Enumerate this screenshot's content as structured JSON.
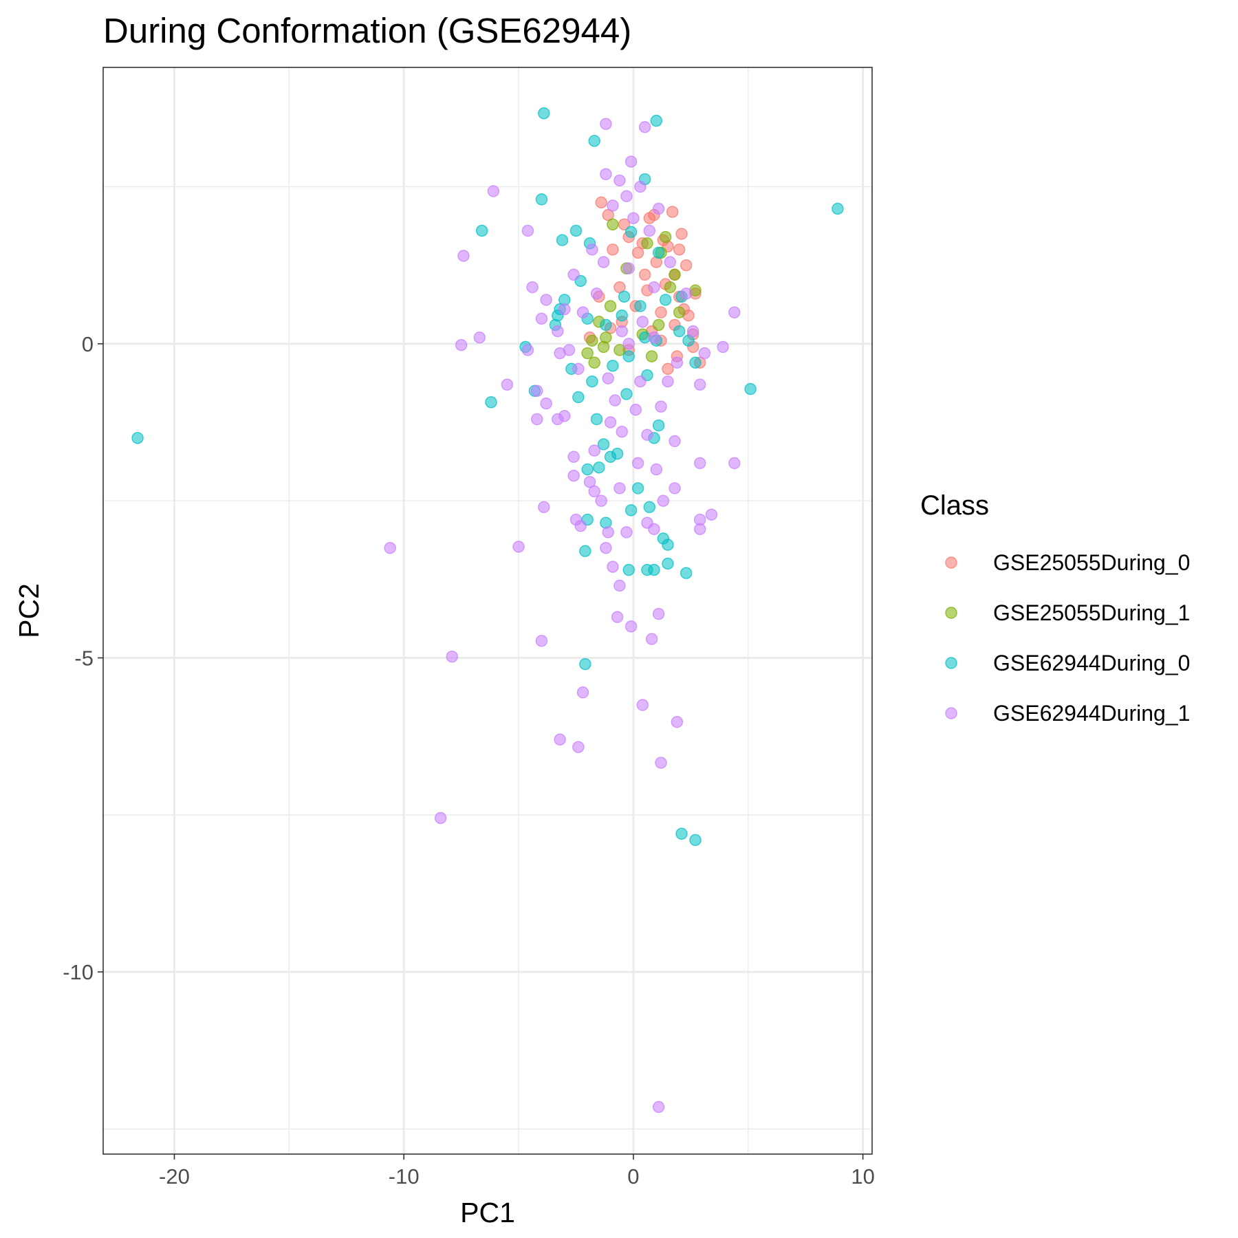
{
  "chart_data": {
    "type": "scatter",
    "title": "During Conformation (GSE62944)",
    "xlabel": "PC1",
    "ylabel": "PC2",
    "xlim": [
      -23.1,
      10.4
    ],
    "ylim": [
      -12.9,
      4.4
    ],
    "x_ticks": [
      -20,
      -10,
      0,
      10
    ],
    "x_tick_labels": [
      "-20",
      "-10",
      "0",
      "10"
    ],
    "y_ticks": [
      -10,
      -5,
      0
    ],
    "y_tick_labels": [
      "-10",
      "-5",
      "0"
    ],
    "grid": true,
    "legend": {
      "title": "Class",
      "position": "right",
      "items": [
        "GSE25055During_0",
        "GSE25055During_1",
        "GSE62944During_0",
        "GSE62944During_1"
      ]
    },
    "marker_alpha": 0.55,
    "series": [
      {
        "name": "GSE25055During_0",
        "color": "#F8766D",
        "points": [
          [
            -1.4,
            2.25
          ],
          [
            -1.1,
            2.05
          ],
          [
            -0.4,
            1.9
          ],
          [
            0.7,
            2.0
          ],
          [
            0.9,
            2.05
          ],
          [
            1.7,
            2.1
          ],
          [
            0.4,
            1.6
          ],
          [
            1.3,
            1.65
          ],
          [
            2.1,
            1.75
          ],
          [
            2.0,
            1.5
          ],
          [
            1.5,
            1.55
          ],
          [
            -0.2,
            1.7
          ],
          [
            0.2,
            1.45
          ],
          [
            1.0,
            1.3
          ],
          [
            2.3,
            1.25
          ],
          [
            1.8,
            1.1
          ],
          [
            2.0,
            0.75
          ],
          [
            2.7,
            0.8
          ],
          [
            1.4,
            0.95
          ],
          [
            0.6,
            0.85
          ],
          [
            -0.6,
            0.9
          ],
          [
            -1.5,
            0.75
          ],
          [
            1.2,
            0.5
          ],
          [
            2.2,
            0.55
          ],
          [
            2.6,
            0.15
          ],
          [
            1.8,
            0.3
          ],
          [
            0.8,
            0.2
          ],
          [
            -0.5,
            0.35
          ],
          [
            2.6,
            -0.05
          ],
          [
            2.9,
            -0.3
          ],
          [
            1.9,
            -0.2
          ],
          [
            1.2,
            0.05
          ],
          [
            -1.0,
            0.25
          ],
          [
            0.1,
            0.6
          ],
          [
            -1.9,
            0.1
          ],
          [
            1.5,
            -0.4
          ],
          [
            0.5,
            1.1
          ],
          [
            -0.9,
            1.5
          ],
          [
            2.4,
            0.45
          ],
          [
            -0.2,
            -0.1
          ]
        ]
      },
      {
        "name": "GSE25055During_1",
        "color": "#7CAE00",
        "points": [
          [
            2.7,
            0.85
          ],
          [
            1.8,
            1.1
          ],
          [
            1.6,
            0.9
          ],
          [
            1.2,
            1.45
          ],
          [
            0.6,
            1.6
          ],
          [
            -0.3,
            1.2
          ],
          [
            -1.0,
            0.6
          ],
          [
            -1.5,
            0.35
          ],
          [
            -2.0,
            -0.15
          ],
          [
            -1.8,
            0.05
          ],
          [
            -1.2,
            0.1
          ],
          [
            -0.6,
            -0.1
          ],
          [
            0.4,
            0.15
          ],
          [
            1.1,
            0.3
          ],
          [
            2.0,
            0.5
          ],
          [
            -1.7,
            -0.3
          ],
          [
            -1.3,
            -0.05
          ],
          [
            0.8,
            -0.2
          ],
          [
            1.4,
            1.7
          ],
          [
            -0.9,
            1.9
          ]
        ]
      },
      {
        "name": "GSE62944During_0",
        "color": "#00BFC4",
        "points": [
          [
            -3.9,
            3.67
          ],
          [
            1.0,
            3.55
          ],
          [
            -1.7,
            3.23
          ],
          [
            0.5,
            2.62
          ],
          [
            -4.0,
            2.3
          ],
          [
            8.9,
            2.15
          ],
          [
            -6.6,
            1.8
          ],
          [
            -3.1,
            1.65
          ],
          [
            -2.5,
            1.8
          ],
          [
            -1.9,
            1.6
          ],
          [
            -0.1,
            1.78
          ],
          [
            1.1,
            1.45
          ],
          [
            -2.3,
            1.0
          ],
          [
            -3.0,
            0.7
          ],
          [
            -3.2,
            0.55
          ],
          [
            -3.4,
            0.3
          ],
          [
            -3.3,
            0.45
          ],
          [
            -2.0,
            0.4
          ],
          [
            -1.2,
            0.3
          ],
          [
            -0.4,
            0.75
          ],
          [
            0.3,
            0.6
          ],
          [
            1.4,
            0.7
          ],
          [
            2.1,
            0.75
          ],
          [
            2.0,
            0.2
          ],
          [
            2.4,
            0.05
          ],
          [
            2.7,
            -0.3
          ],
          [
            1.0,
            0.05
          ],
          [
            -0.2,
            -0.2
          ],
          [
            -0.9,
            -0.35
          ],
          [
            -2.7,
            -0.4
          ],
          [
            -4.7,
            -0.05
          ],
          [
            -6.2,
            -0.93
          ],
          [
            -4.3,
            -0.75
          ],
          [
            -2.4,
            -0.85
          ],
          [
            -1.8,
            -0.6
          ],
          [
            -0.3,
            -0.8
          ],
          [
            0.6,
            -0.5
          ],
          [
            1.1,
            -1.3
          ],
          [
            0.9,
            -1.5
          ],
          [
            -1.6,
            -1.2
          ],
          [
            -1.3,
            -1.6
          ],
          [
            -1.0,
            -1.8
          ],
          [
            -1.5,
            -1.97
          ],
          [
            -2.0,
            -2.0
          ],
          [
            -0.7,
            -1.75
          ],
          [
            0.2,
            -2.3
          ],
          [
            -0.1,
            -2.65
          ],
          [
            0.7,
            -2.6
          ],
          [
            -2.0,
            -2.8
          ],
          [
            -1.2,
            -2.85
          ],
          [
            -2.1,
            -3.3
          ],
          [
            1.3,
            -3.1
          ],
          [
            1.5,
            -3.2
          ],
          [
            -0.2,
            -3.6
          ],
          [
            0.6,
            -3.6
          ],
          [
            0.9,
            -3.6
          ],
          [
            1.5,
            -3.5
          ],
          [
            2.3,
            -3.65
          ],
          [
            -2.1,
            -5.1
          ],
          [
            2.1,
            -7.8
          ],
          [
            2.7,
            -7.9
          ],
          [
            5.1,
            -0.72
          ],
          [
            -21.6,
            -1.5
          ],
          [
            0.5,
            0.1
          ],
          [
            -0.5,
            0.45
          ]
        ]
      },
      {
        "name": "GSE62944During_1",
        "color": "#C77CFF",
        "points": [
          [
            -1.2,
            3.5
          ],
          [
            0.5,
            3.45
          ],
          [
            -0.1,
            2.9
          ],
          [
            -1.2,
            2.7
          ],
          [
            -0.6,
            2.6
          ],
          [
            0.3,
            2.5
          ],
          [
            -6.1,
            2.43
          ],
          [
            -0.3,
            2.35
          ],
          [
            1.1,
            2.15
          ],
          [
            -4.6,
            1.8
          ],
          [
            -7.4,
            1.4
          ],
          [
            -4.4,
            0.9
          ],
          [
            -3.8,
            0.7
          ],
          [
            -4.0,
            0.4
          ],
          [
            -3.3,
            0.2
          ],
          [
            -3.0,
            0.55
          ],
          [
            4.4,
            0.5
          ],
          [
            3.9,
            -0.05
          ],
          [
            -7.5,
            -0.02
          ],
          [
            -6.7,
            0.1
          ],
          [
            -4.6,
            -0.1
          ],
          [
            -3.2,
            -0.15
          ],
          [
            -5.5,
            -0.65
          ],
          [
            -4.2,
            -0.75
          ],
          [
            -3.8,
            -0.95
          ],
          [
            -4.2,
            -1.2
          ],
          [
            -3.3,
            -1.2
          ],
          [
            -3.0,
            -1.15
          ],
          [
            2.9,
            -0.65
          ],
          [
            3.1,
            -0.15
          ],
          [
            -2.6,
            -1.8
          ],
          [
            -1.7,
            -1.7
          ],
          [
            -2.6,
            -2.1
          ],
          [
            -1.9,
            -2.2
          ],
          [
            -1.7,
            -2.35
          ],
          [
            -1.4,
            -2.5
          ],
          [
            -3.9,
            -2.6
          ],
          [
            -2.5,
            -2.8
          ],
          [
            -2.3,
            -2.9
          ],
          [
            -1.1,
            -3.0
          ],
          [
            -0.3,
            -3.0
          ],
          [
            0.6,
            -2.85
          ],
          [
            0.9,
            -2.95
          ],
          [
            1.3,
            -2.5
          ],
          [
            1.8,
            -2.3
          ],
          [
            2.9,
            -1.9
          ],
          [
            4.4,
            -1.9
          ],
          [
            2.9,
            -2.8
          ],
          [
            2.9,
            -2.95
          ],
          [
            3.4,
            -2.72
          ],
          [
            -10.6,
            -3.25
          ],
          [
            -5.0,
            -3.23
          ],
          [
            -1.2,
            -3.25
          ],
          [
            -0.9,
            -3.55
          ],
          [
            -0.6,
            -3.85
          ],
          [
            -0.7,
            -4.35
          ],
          [
            -0.1,
            -4.5
          ],
          [
            1.1,
            -4.3
          ],
          [
            0.8,
            -4.7
          ],
          [
            -4.0,
            -4.73
          ],
          [
            -7.9,
            -4.98
          ],
          [
            -2.2,
            -5.55
          ],
          [
            0.4,
            -5.75
          ],
          [
            1.9,
            -6.02
          ],
          [
            -3.2,
            -6.3
          ],
          [
            -2.4,
            -6.42
          ],
          [
            1.2,
            -6.67
          ],
          [
            -8.4,
            -7.55
          ],
          [
            1.1,
            -12.15
          ],
          [
            -0.5,
            0.2
          ],
          [
            0.3,
            -0.6
          ],
          [
            -0.8,
            -0.9
          ],
          [
            1.5,
            -0.6
          ],
          [
            -0.2,
            1.2
          ],
          [
            0.9,
            0.9
          ],
          [
            -1.6,
            0.8
          ],
          [
            -2.2,
            0.5
          ],
          [
            2.3,
            0.8
          ],
          [
            -0.5,
            -1.4
          ],
          [
            0.6,
            -1.45
          ],
          [
            1.8,
            -1.55
          ],
          [
            -1.0,
            -1.25
          ],
          [
            0.2,
            -1.9
          ],
          [
            -0.6,
            -2.3
          ],
          [
            1.0,
            -2.0
          ],
          [
            -1.3,
            1.3
          ],
          [
            -0.9,
            2.2
          ],
          [
            0.7,
            1.8
          ],
          [
            1.6,
            1.3
          ],
          [
            -2.4,
            -0.4
          ],
          [
            -2.8,
            -0.1
          ],
          [
            2.6,
            0.2
          ],
          [
            -0.2,
            0.0
          ],
          [
            0.4,
            0.35
          ],
          [
            -1.1,
            -0.55
          ],
          [
            1.2,
            -1.0
          ],
          [
            -1.8,
            1.5
          ],
          [
            0.0,
            2.0
          ],
          [
            1.9,
            -0.3
          ],
          [
            -2.6,
            1.1
          ],
          [
            0.1,
            -1.05
          ],
          [
            0.9,
            0.1
          ]
        ]
      }
    ]
  }
}
